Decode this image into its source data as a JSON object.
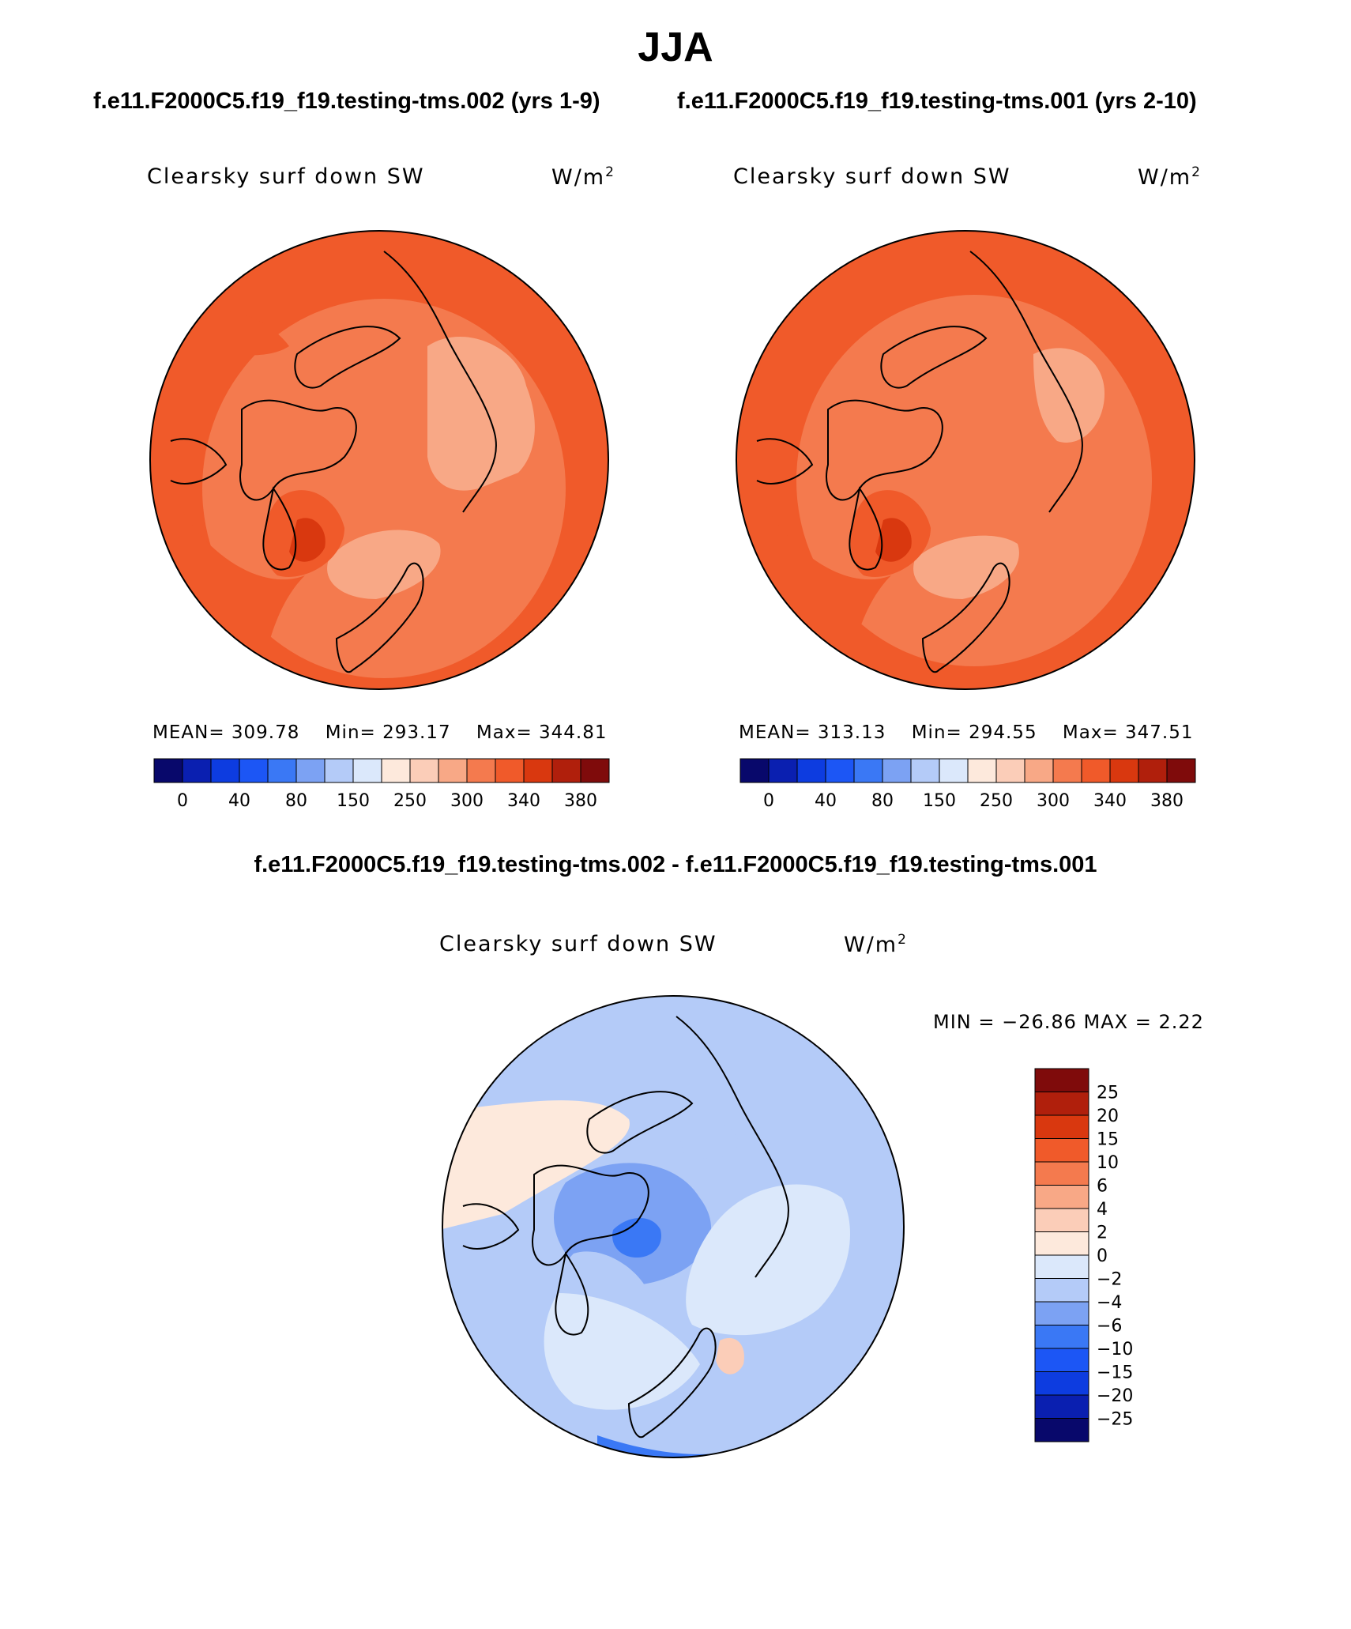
{
  "page": {
    "title": "JJA",
    "case_left": "f.e11.F2000C5.f19_f19.testing-tms.002 (yrs 1-9)",
    "case_right": "f.e11.F2000C5.f19_f19.testing-tms.001 (yrs 2-10)",
    "diff_title": "f.e11.F2000C5.f19_f19.testing-tms.002 - f.e11.F2000C5.f19_f19.testing-tms.001"
  },
  "panels": {
    "left": {
      "variable": "Clearsky surf down SW",
      "units_base": "W/m",
      "units_exp": "2",
      "mean_label": "MEAN= 309.78",
      "min_label": "Min= 293.17",
      "max_label": "Max= 344.81"
    },
    "right": {
      "variable": "Clearsky surf down SW",
      "units_base": "W/m",
      "units_exp": "2",
      "mean_label": "MEAN= 313.13",
      "min_label": "Min= 294.55",
      "max_label": "Max= 347.51"
    },
    "diff": {
      "variable": "Clearsky surf down SW",
      "units_base": "W/m",
      "units_exp": "2",
      "minmax_label": "MIN = −26.86 MAX =    2.22"
    }
  },
  "chart_data": [
    {
      "type": "heatmap",
      "projection": "north polar stereographic",
      "title": "Clearsky surf down SW",
      "units": "W/m2",
      "case": "f.e11.F2000C5.f19_f19.testing-tms.002 (yrs 1-9)",
      "mean": 309.78,
      "min": 293.17,
      "max": 344.81,
      "colorbar_labels": [
        "0",
        "40",
        "80",
        "150",
        "250",
        "300",
        "340",
        "380"
      ]
    },
    {
      "type": "heatmap",
      "projection": "north polar stereographic",
      "title": "Clearsky surf down SW",
      "units": "W/m2",
      "case": "f.e11.F2000C5.f19_f19.testing-tms.001 (yrs 2-10)",
      "mean": 313.13,
      "min": 294.55,
      "max": 347.51,
      "colorbar_labels": [
        "0",
        "40",
        "80",
        "150",
        "250",
        "300",
        "340",
        "380"
      ]
    },
    {
      "type": "heatmap",
      "projection": "north polar stereographic",
      "title": "Clearsky surf down SW",
      "units": "W/m2",
      "case": "f.e11.F2000C5.f19_f19.testing-tms.002 - f.e11.F2000C5.f19_f19.testing-tms.001",
      "min": -26.86,
      "max": 2.22,
      "colorbar_labels": [
        "25",
        "20",
        "15",
        "10",
        "6",
        "4",
        "2",
        "0",
        "−2",
        "−4",
        "−6",
        "−10",
        "−15",
        "−20",
        "−25"
      ]
    }
  ],
  "colormaps": {
    "abs": [
      "#08086b",
      "#0a1fb0",
      "#0d3ce0",
      "#1c56f5",
      "#3a78f5",
      "#7ca2f3",
      "#b4cbf8",
      "#dbe8fb",
      "#fde9dc",
      "#fbcdb8",
      "#f8a886",
      "#f47a4e",
      "#f05a2a",
      "#d9380f",
      "#b01f0c",
      "#7f0b0b"
    ],
    "diff": [
      "#7f0b0b",
      "#b01f0c",
      "#d9380f",
      "#f05a2a",
      "#f47a4e",
      "#f8a886",
      "#fbcdb8",
      "#fde9dc",
      "#dbe8fb",
      "#b4cbf8",
      "#7ca2f3",
      "#3a78f5",
      "#1c56f5",
      "#0d3ce0",
      "#0a1fb0",
      "#08086b"
    ]
  }
}
